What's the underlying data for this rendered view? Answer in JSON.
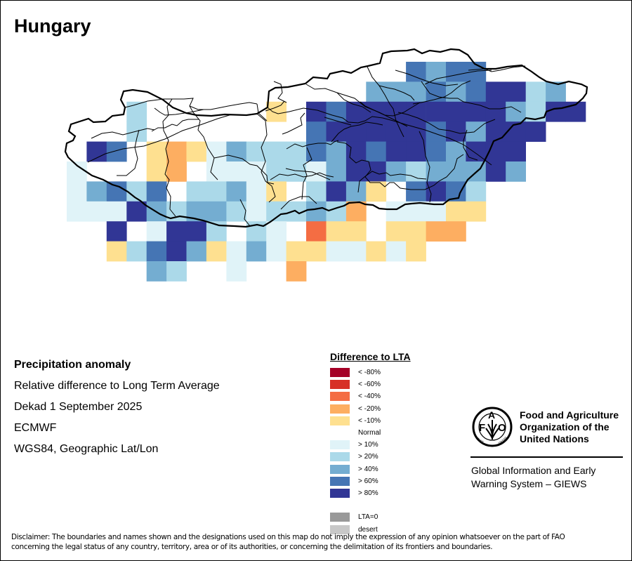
{
  "title": "Hungary",
  "info": {
    "heading": "Precipitation anomaly",
    "line1": "Relative difference to Long Term Average",
    "line2": "Dekad 1 September 2025",
    "line3": "ECMWF",
    "line4": "WGS84, Geographic Lat/Lon"
  },
  "legend": {
    "title": "Difference to LTA",
    "items": [
      {
        "label": "< -80%",
        "color": "#a50026"
      },
      {
        "label": "< -60%",
        "color": "#d73027"
      },
      {
        "label": "< -40%",
        "color": "#f46d43"
      },
      {
        "label": "< -20%",
        "color": "#fdae61"
      },
      {
        "label": "< -10%",
        "color": "#fee090"
      },
      {
        "label": "Normal",
        "color": "#ffffff"
      },
      {
        "label": "> 10%",
        "color": "#e0f3f8"
      },
      {
        "label": "> 20%",
        "color": "#abd9e9"
      },
      {
        "label": "> 40%",
        "color": "#74add1"
      },
      {
        "label": "> 60%",
        "color": "#4575b4"
      },
      {
        "label": "> 80%",
        "color": "#313695"
      },
      {
        "label": "",
        "color": "#ffffff"
      },
      {
        "label": "LTA=0",
        "color": "#999999"
      },
      {
        "label": "desert",
        "color": "#c8c8c8"
      }
    ]
  },
  "map_cells": {
    "classes": {
      "m40": "#f46d43",
      "m20": "#fdae61",
      "m10": "#fee090",
      "p10": "#e0f3f8",
      "p20": "#abd9e9",
      "p40": "#74add1",
      "p60": "#4575b4",
      "p80": "#313695"
    },
    "rows": [
      "...................p60 p40 p60 p60 .......",
      ""
    ]
  },
  "fao": {
    "logo_text": "FAO FIAT PANIS",
    "name_line1": "Food and Agriculture",
    "name_line2": "Organization of the",
    "name_line3": "United Nations",
    "giews_line1": "Global Information and Early",
    "giews_line2": "Warning System – GIEWS"
  },
  "disclaimer": {
    "line1": "Disclaimer: The boundaries and names shown and the designations used on this map do not imply the expression of any opinion whatsoever on the part of FAO",
    "line2": "concerning the legal status of any country, territory, area or of its authorities, or concerning the delimitation of its frontiers and boundaries."
  }
}
